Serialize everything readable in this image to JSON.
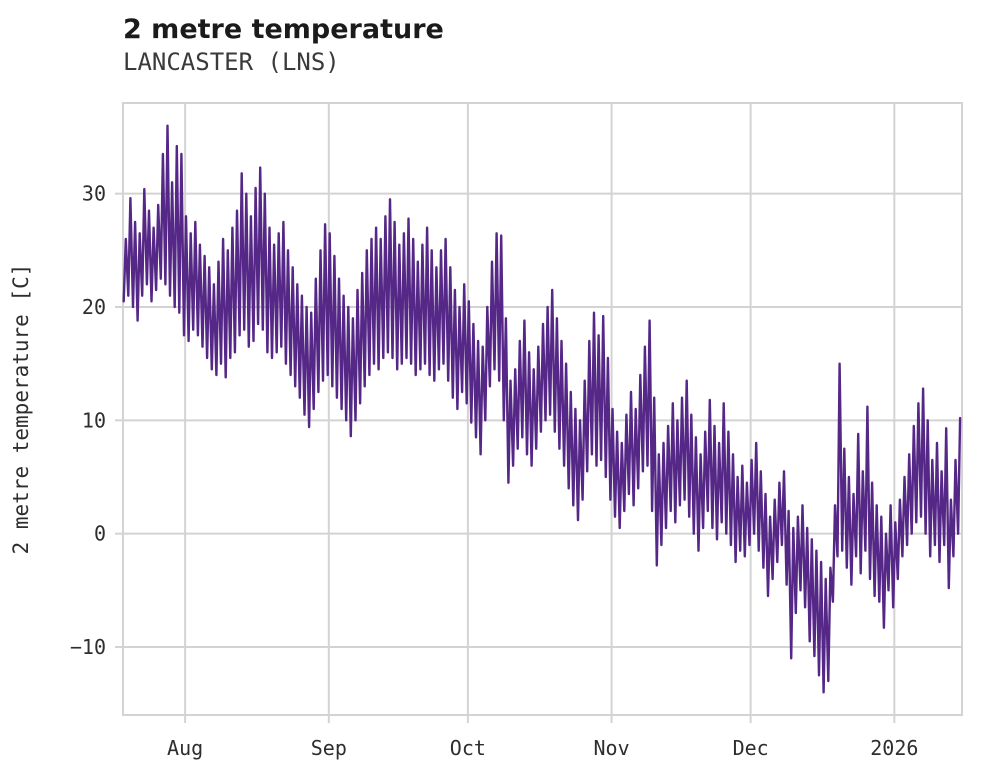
{
  "header": {
    "title": "2 metre temperature",
    "subtitle": "LANCASTER (LNS)"
  },
  "chart_data": {
    "type": "line",
    "title": "2 metre temperature",
    "subtitle": "LANCASTER (LNS)",
    "xlabel": "",
    "ylabel": "2 metre temperature [C]",
    "legend": "none",
    "grid": true,
    "grid_color": "#d3d3d3",
    "line_color": "#552786",
    "tick_label_color": "#2e2e2e",
    "ylim": [
      -16,
      38
    ],
    "yticks": [
      {
        "value": 30,
        "label": "30"
      },
      {
        "value": 20,
        "label": "20"
      },
      {
        "value": 10,
        "label": "10"
      },
      {
        "value": 0,
        "label": "0"
      },
      {
        "value": -10,
        "label": "−10"
      }
    ],
    "xlim_days": [
      0,
      181
    ],
    "xticks": [
      {
        "label": "Aug",
        "day": 13.4
      },
      {
        "label": "Sep",
        "day": 44.4
      },
      {
        "label": "Oct",
        "day": 74.4
      },
      {
        "label": "Nov",
        "day": 105.4
      },
      {
        "label": "Dec",
        "day": 135.4
      },
      {
        "label": "2026",
        "day": 166.4
      }
    ],
    "series_description": "daily_minmax holds one [min C, max C] pair per day, day 0 at the left plot edge (mid-July) through mid-January 2026",
    "daily_minmax": [
      [
        20.5,
        26
      ],
      [
        21,
        29.6
      ],
      [
        20,
        27.5
      ],
      [
        18.8,
        26.5
      ],
      [
        21,
        30.4
      ],
      [
        22,
        28.5
      ],
      [
        20.5,
        27
      ],
      [
        21.5,
        29
      ],
      [
        22.5,
        33.5
      ],
      [
        22,
        36
      ],
      [
        21,
        31
      ],
      [
        20,
        34.2
      ],
      [
        19.5,
        33.5
      ],
      [
        17.5,
        28
      ],
      [
        17,
        26.5
      ],
      [
        18,
        27.5
      ],
      [
        17.5,
        25.5
      ],
      [
        16.5,
        24.5
      ],
      [
        15.5,
        23.5
      ],
      [
        14.5,
        22
      ],
      [
        14,
        24
      ],
      [
        15,
        26
      ],
      [
        13.8,
        25
      ],
      [
        15.5,
        27
      ],
      [
        16,
        28.5
      ],
      [
        17.5,
        31.8
      ],
      [
        18,
        30
      ],
      [
        16.5,
        28
      ],
      [
        17,
        30.5
      ],
      [
        18.5,
        32.3
      ],
      [
        18,
        30
      ],
      [
        16,
        27
      ],
      [
        15.5,
        25.5
      ],
      [
        16,
        26.5
      ],
      [
        16.5,
        27.5
      ],
      [
        15,
        25
      ],
      [
        14,
        23.5
      ],
      [
        13,
        22
      ],
      [
        12,
        21
      ],
      [
        10.5,
        20
      ],
      [
        9.4,
        19.5
      ],
      [
        11,
        22.5
      ],
      [
        12.5,
        25
      ],
      [
        13.5,
        27.3
      ],
      [
        14,
        26.5
      ],
      [
        13,
        24.5
      ],
      [
        12,
        22.5
      ],
      [
        11,
        21
      ],
      [
        10,
        20
      ],
      [
        8.6,
        19
      ],
      [
        10,
        21.5
      ],
      [
        11.5,
        23
      ],
      [
        13,
        25
      ],
      [
        14,
        26
      ],
      [
        15,
        27
      ],
      [
        14.5,
        26
      ],
      [
        15.5,
        28
      ],
      [
        16,
        29.5
      ],
      [
        15.5,
        27.5
      ],
      [
        14.5,
        25.5
      ],
      [
        15,
        26.5
      ],
      [
        15.5,
        27.8
      ],
      [
        15,
        26
      ],
      [
        14,
        24
      ],
      [
        14.5,
        25.5
      ],
      [
        15,
        27
      ],
      [
        14,
        25
      ],
      [
        13.5,
        23.5
      ],
      [
        14.5,
        25
      ],
      [
        15,
        26
      ],
      [
        13.5,
        23.5
      ],
      [
        12,
        21.5
      ],
      [
        11,
        20
      ],
      [
        12.5,
        22
      ],
      [
        11.5,
        20.5
      ],
      [
        9.8,
        18.5
      ],
      [
        8.5,
        17
      ],
      [
        7,
        16.5
      ],
      [
        10,
        20
      ],
      [
        13,
        24
      ],
      [
        14.5,
        26.5
      ],
      [
        13.5,
        26.3
      ],
      [
        10,
        19
      ],
      [
        4.5,
        13.5
      ],
      [
        6,
        14.5
      ],
      [
        7.5,
        17
      ],
      [
        8.5,
        18.8
      ],
      [
        7,
        16
      ],
      [
        6,
        14.5
      ],
      [
        7.5,
        16.5
      ],
      [
        9,
        18.5
      ],
      [
        10,
        20
      ],
      [
        10.5,
        21.5
      ],
      [
        9,
        19
      ],
      [
        7.5,
        17
      ],
      [
        6,
        15
      ],
      [
        4,
        12.5
      ],
      [
        2.5,
        11
      ],
      [
        1.2,
        10
      ],
      [
        3,
        13.5
      ],
      [
        5.5,
        17
      ],
      [
        7,
        19.5
      ],
      [
        6,
        17.5
      ],
      [
        6.5,
        19.2
      ],
      [
        5,
        15.5
      ],
      [
        3,
        11
      ],
      [
        1.5,
        9
      ],
      [
        0.5,
        8
      ],
      [
        2,
        10.5
      ],
      [
        3.5,
        12.5
      ],
      [
        2.5,
        11
      ],
      [
        4,
        14
      ],
      [
        5.5,
        16.5
      ],
      [
        6,
        18.8
      ],
      [
        2,
        12
      ],
      [
        -2.8,
        7
      ],
      [
        -1,
        8
      ],
      [
        0.5,
        9.5
      ],
      [
        2,
        11.5
      ],
      [
        1,
        10
      ],
      [
        2.5,
        12
      ],
      [
        3,
        13.5
      ],
      [
        1.5,
        10.5
      ],
      [
        0,
        8.5
      ],
      [
        -1.5,
        7
      ],
      [
        0.5,
        9
      ],
      [
        2,
        11.8
      ],
      [
        0.5,
        9.5
      ],
      [
        -0.5,
        8
      ],
      [
        1,
        11.5
      ],
      [
        0,
        9
      ],
      [
        -1,
        7
      ],
      [
        -2.5,
        5
      ],
      [
        -1.5,
        6
      ],
      [
        -2,
        4.5
      ],
      [
        -1,
        6.5
      ],
      [
        0,
        8
      ],
      [
        -1.5,
        5.5
      ],
      [
        -3,
        3.5
      ],
      [
        -5.5,
        1.5
      ],
      [
        -4,
        3
      ],
      [
        -2.5,
        4.5
      ],
      [
        -1,
        5.5
      ],
      [
        -4.5,
        2
      ],
      [
        -11,
        0.5
      ],
      [
        -7,
        1.5
      ],
      [
        -5,
        2.5
      ],
      [
        -6.5,
        0.5
      ],
      [
        -9.5,
        -0.5
      ],
      [
        -10.8,
        -1.5
      ],
      [
        -12.5,
        -2.5
      ],
      [
        -14,
        -4
      ],
      [
        -13,
        -3
      ],
      [
        -6,
        2.5
      ],
      [
        -2,
        15
      ],
      [
        -1.5,
        7.5
      ],
      [
        -3,
        5
      ],
      [
        -4.5,
        3.5
      ],
      [
        -2,
        8.8
      ],
      [
        -3.5,
        5.5
      ],
      [
        -1.5,
        11.2
      ],
      [
        -4,
        4.5
      ],
      [
        -5.5,
        2.5
      ],
      [
        -6,
        1.5
      ],
      [
        -8.3,
        0
      ],
      [
        -5,
        2.5
      ],
      [
        -6.5,
        1
      ],
      [
        -4,
        3
      ],
      [
        -2,
        5
      ],
      [
        -1,
        7
      ],
      [
        0,
        9.5
      ],
      [
        1,
        11.5
      ],
      [
        1.5,
        12.8
      ],
      [
        0,
        10
      ],
      [
        -2,
        6.5
      ],
      [
        -1,
        8
      ],
      [
        -2.5,
        5.5
      ],
      [
        -1,
        9.3
      ],
      [
        -4.8,
        3
      ],
      [
        -2,
        6.5
      ],
      [
        0,
        10.2
      ]
    ]
  }
}
